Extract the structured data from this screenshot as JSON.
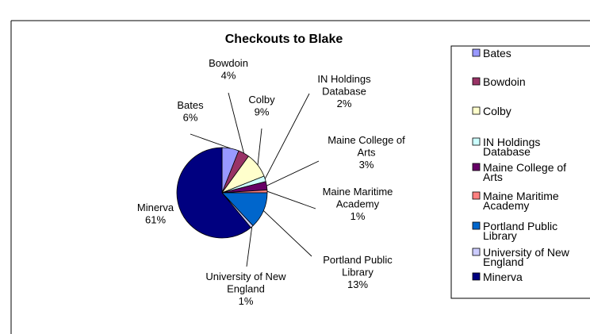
{
  "chart_data": {
    "type": "pie",
    "title": "Checkouts to Blake",
    "legend_position": "right",
    "slices": [
      {
        "name": "Bates",
        "value": 6,
        "label": "6%",
        "color": "#9999ff"
      },
      {
        "name": "Bowdoin",
        "value": 4,
        "label": "4%",
        "color": "#993366"
      },
      {
        "name": "Colby",
        "value": 9,
        "label": "9%",
        "color": "#ffffcc"
      },
      {
        "name": "IN Holdings Database",
        "value": 2,
        "label": "2%",
        "color": "#ccffff"
      },
      {
        "name": "Maine College of Arts",
        "value": 3,
        "label": "3%",
        "color": "#660066"
      },
      {
        "name": "Maine Maritime Academy",
        "value": 1,
        "label": "1%",
        "color": "#ff8080"
      },
      {
        "name": "Portland Public Library",
        "value": 13,
        "label": "13%",
        "color": "#0066cc"
      },
      {
        "name": "University of New England",
        "value": 1,
        "label": "1%",
        "color": "#ccccff"
      },
      {
        "name": "Minerva",
        "value": 61,
        "label": "61%",
        "color": "#000080"
      }
    ]
  }
}
